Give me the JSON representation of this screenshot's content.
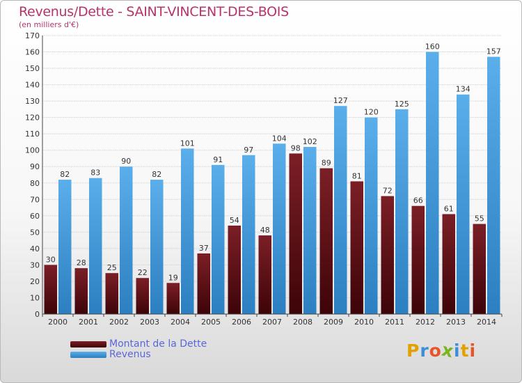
{
  "title": "Revenus/Dette - SAINT-VINCENT-DES-BOIS",
  "subtitle": "(en milliers d'€)",
  "legend": {
    "debt_label": "Montant de la Dette",
    "revenue_label": "Revenus"
  },
  "logo": {
    "letters": [
      "P",
      "r",
      "o",
      "x",
      "i",
      "t",
      "i"
    ],
    "colors": [
      "#e2a100",
      "#3d8dd8",
      "#e8542a",
      "#7ab51d",
      "#3d8dd8",
      "#e2a100",
      "#e8542a"
    ]
  },
  "colors": {
    "debt": "#7b1f26",
    "debt_dark": "#3d0408",
    "revenue": "#5aaeea",
    "revenue_dark": "#2c7fc0"
  },
  "chart_data": {
    "type": "bar",
    "title": "Revenus/Dette - SAINT-VINCENT-DES-BOIS",
    "subtitle": "(en milliers d'€)",
    "categories": [
      "2000",
      "2001",
      "2002",
      "2003",
      "2004",
      "2005",
      "2006",
      "2007",
      "2008",
      "2009",
      "2010",
      "2011",
      "2012",
      "2013",
      "2014"
    ],
    "series": [
      {
        "name": "Montant de la Dette",
        "values": [
          30,
          28,
          25,
          22,
          19,
          37,
          54,
          48,
          98,
          89,
          81,
          72,
          66,
          61,
          55
        ]
      },
      {
        "name": "Revenus",
        "values": [
          82,
          83,
          90,
          82,
          101,
          91,
          97,
          104,
          102,
          127,
          120,
          125,
          160,
          134,
          157
        ]
      }
    ],
    "ylim": [
      0,
      170
    ],
    "yticks": [
      0,
      10,
      20,
      30,
      40,
      50,
      60,
      70,
      80,
      90,
      100,
      110,
      120,
      130,
      140,
      150,
      160,
      170
    ],
    "grid": true,
    "legend_position": "bottom-left"
  }
}
